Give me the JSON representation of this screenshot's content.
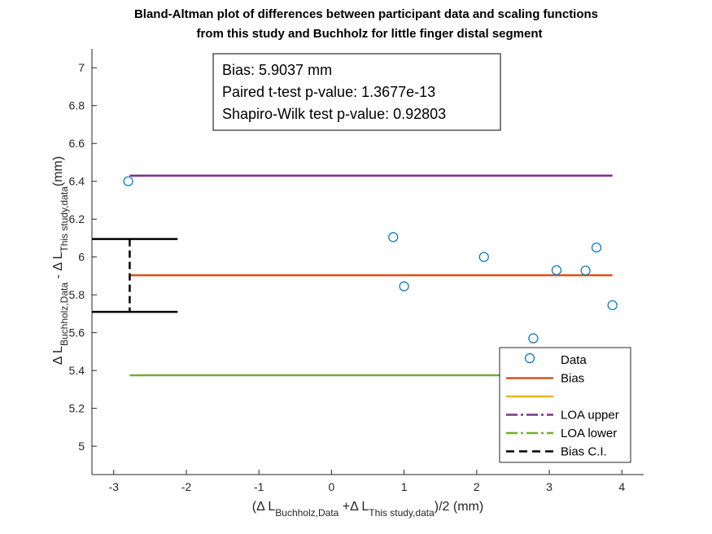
{
  "chart_data": {
    "type": "scatter",
    "title_lines": [
      "Bland-Altman plot of differences between participant data and scaling functions",
      "from this study and Buchholz for little finger distal segment"
    ],
    "xlabel": {
      "pre": "(Δ L",
      "sub1": "Buchholz,Data",
      "mid": " +Δ L",
      "sub2": "This study,data",
      "post": ")/2 (mm)"
    },
    "ylabel": {
      "pre": "Δ L",
      "sub1": "Buchholz,Data",
      "mid": " - Δ L",
      "sub2": "This study,data",
      "post": "(mm)"
    },
    "xlim": [
      -3.3,
      4.3
    ],
    "ylim": [
      4.85,
      7.1
    ],
    "xticks": [
      -3,
      -2,
      -1,
      0,
      1,
      2,
      3,
      4
    ],
    "xtick_labels": [
      "-3",
      "-2",
      "-1",
      "0",
      "1",
      "2",
      "3",
      "4"
    ],
    "yticks": [
      5,
      5.2,
      5.4,
      5.6,
      5.8,
      6,
      6.2,
      6.4,
      6.6,
      6.8,
      7
    ],
    "ytick_labels": [
      "5",
      "5.2",
      "5.4",
      "5.6",
      "5.8",
      "6",
      "6.2",
      "6.4",
      "6.6",
      "6.8",
      "7"
    ],
    "grid": false,
    "data_points": [
      {
        "x": -2.8,
        "y": 6.4
      },
      {
        "x": 0.85,
        "y": 6.105
      },
      {
        "x": 1.0,
        "y": 5.845
      },
      {
        "x": 2.1,
        "y": 6.0
      },
      {
        "x": 2.78,
        "y": 5.57
      },
      {
        "x": 3.1,
        "y": 5.93
      },
      {
        "x": 3.5,
        "y": 5.928
      },
      {
        "x": 3.65,
        "y": 6.05
      },
      {
        "x": 3.87,
        "y": 5.745
      }
    ],
    "bias_line": {
      "x": [
        -2.78,
        3.87
      ],
      "y": 5.9037
    },
    "loa_upper": {
      "x": [
        -2.78,
        3.87
      ],
      "y": 6.43
    },
    "loa_lower": {
      "x": [
        -2.78,
        3.87
      ],
      "y": 5.375
    },
    "bias_ci": {
      "x": -2.78,
      "x_cap": [
        -3.3,
        -2.12
      ],
      "lower": 5.71,
      "upper": 6.095
    },
    "annotation_lines": [
      "Bias: 5.9037 mm",
      "Paired t-test p-value: 1.3677e-13",
      "Shapiro-Wilk test p-value: 0.92803"
    ],
    "legend": {
      "placement": "bottom-right",
      "entries": [
        {
          "label": "Data",
          "style": "marker",
          "color": "#0072BD"
        },
        {
          "label": "Bias",
          "style": "solid",
          "color": "#D95319"
        },
        {
          "label": "",
          "style": "solid",
          "color": "#EDB120"
        },
        {
          "label": "LOA upper",
          "style": "dashdot",
          "color": "#7E2F8E"
        },
        {
          "label": "LOA lower",
          "style": "dashdot",
          "color": "#77AC30"
        },
        {
          "label": "Bias C.I.",
          "style": "dashed",
          "color": "#000000"
        }
      ]
    },
    "colors": {
      "data": "#0072BD",
      "bias": "#D95319",
      "loa_upper": "#7E2F8E",
      "loa_lower": "#77AC30",
      "ci": "#000000",
      "axis": "#262626"
    }
  }
}
